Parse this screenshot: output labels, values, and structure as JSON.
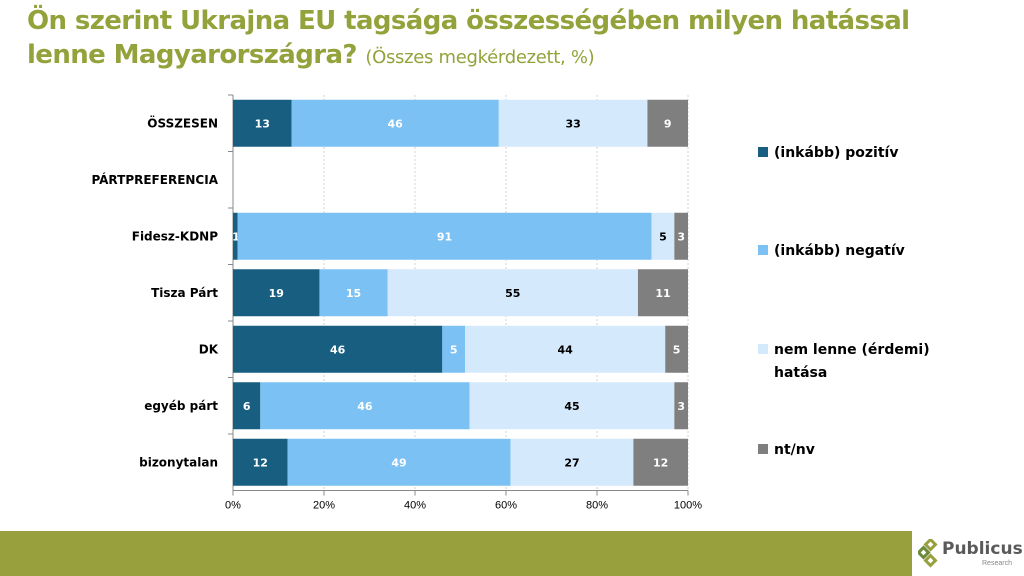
{
  "title": {
    "main": "Ön szerint Ukrajna EU tagsága összességében milyen hatással lenne Magyarországra?",
    "subtitle": "(Összes megkérdezett, %)"
  },
  "chart_data": {
    "type": "bar",
    "orientation": "horizontal",
    "stacked": "100%",
    "categories": [
      "ÖSSZESEN",
      "PÁRTPREFERENCIA",
      "Fidesz-KDNP",
      "Tisza Párt",
      "DK",
      "egyéb párt",
      "bizonytalan"
    ],
    "series": [
      {
        "name": "(inkább) pozitív",
        "color": "#175e80",
        "values": [
          13,
          null,
          1,
          19,
          46,
          6,
          12
        ]
      },
      {
        "name": "(inkább) negatív",
        "color": "#7cc1f4",
        "values": [
          46,
          null,
          91,
          15,
          5,
          46,
          49
        ]
      },
      {
        "name": "nem lenne (érdemi) hatása",
        "color": "#d4e9fb",
        "values": [
          33,
          null,
          5,
          55,
          44,
          45,
          27
        ]
      },
      {
        "name": "nt/nv",
        "color": "#7f7f7f",
        "values": [
          9,
          null,
          3,
          11,
          5,
          3,
          12
        ]
      }
    ],
    "xaxis": {
      "ticks": [
        "0%",
        "20%",
        "40%",
        "60%",
        "80%",
        "100%"
      ],
      "range": [
        0,
        100
      ]
    },
    "grid": "vertical dotted",
    "legend": "right"
  },
  "logo": {
    "name": "Publicus",
    "sub": "Research"
  }
}
